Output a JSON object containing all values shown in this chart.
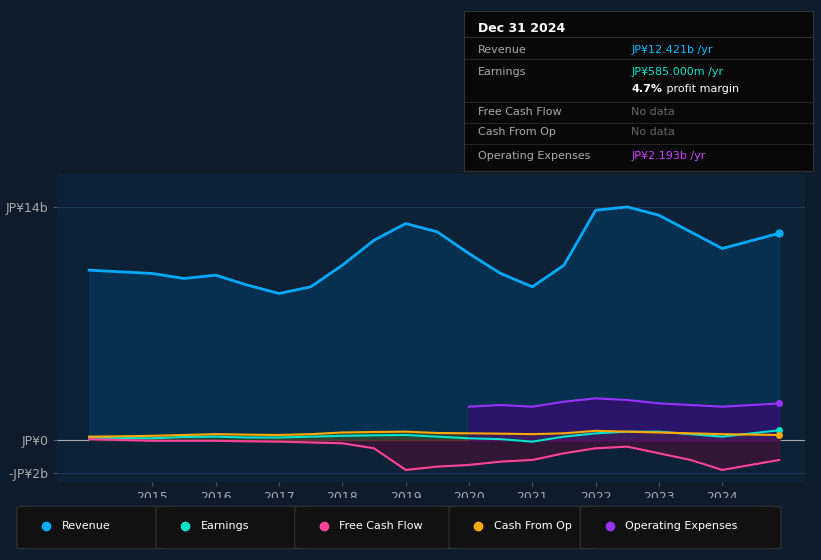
{
  "bg_color": "#0d1b2a",
  "plot_bg_color": "#0d2137",
  "grid_color": "#1e3a5a",
  "ylim": [
    -2.5,
    16.0
  ],
  "ytick_labels": [
    "-JP¥2b",
    "JP¥0",
    "JP¥14b"
  ],
  "ytick_vals": [
    -2,
    0,
    14
  ],
  "x_years": [
    2014,
    2014.5,
    2015,
    2015.5,
    2016,
    2016.5,
    2017,
    2017.5,
    2018,
    2018.5,
    2019,
    2019.5,
    2020,
    2020.5,
    2021,
    2021.5,
    2022,
    2022.5,
    2023,
    2023.5,
    2024,
    2024.9
  ],
  "revenue": [
    10.2,
    10.1,
    10.0,
    9.7,
    9.9,
    9.3,
    8.8,
    9.2,
    10.5,
    12.0,
    13.0,
    12.5,
    11.2,
    10.0,
    9.2,
    10.5,
    13.8,
    14.0,
    13.5,
    12.5,
    11.5,
    12.421
  ],
  "earnings": [
    0.15,
    0.12,
    0.1,
    0.18,
    0.2,
    0.15,
    0.15,
    0.2,
    0.25,
    0.28,
    0.3,
    0.2,
    0.1,
    0.05,
    -0.1,
    0.2,
    0.4,
    0.5,
    0.5,
    0.35,
    0.2,
    0.585
  ],
  "free_cash_flow_x": [
    2014,
    2014.5,
    2015,
    2015.5,
    2016,
    2016.5,
    2017,
    2017.5,
    2018,
    2018.5,
    2019,
    2019.5,
    2020,
    2020.5,
    2021,
    2021.5,
    2022,
    2022.5,
    2023,
    2023.5,
    2024,
    2024.9
  ],
  "free_cash_flow": [
    0.05,
    0.0,
    -0.05,
    -0.05,
    -0.05,
    -0.08,
    -0.1,
    -0.15,
    -0.2,
    -0.5,
    -1.8,
    -1.6,
    -1.5,
    -1.3,
    -1.2,
    -0.8,
    -0.5,
    -0.4,
    -0.8,
    -1.2,
    -1.8,
    -1.2
  ],
  "cash_from_op": [
    0.2,
    0.22,
    0.25,
    0.3,
    0.35,
    0.32,
    0.3,
    0.35,
    0.45,
    0.48,
    0.5,
    0.42,
    0.4,
    0.38,
    0.35,
    0.4,
    0.55,
    0.5,
    0.45,
    0.4,
    0.35,
    0.3
  ],
  "op_expenses_x": [
    2020,
    2020.5,
    2021,
    2021.5,
    2022,
    2022.5,
    2023,
    2023.5,
    2024,
    2024.9
  ],
  "op_expenses_y": [
    2.0,
    2.1,
    2.0,
    2.3,
    2.5,
    2.4,
    2.2,
    2.1,
    2.0,
    2.193
  ],
  "revenue_color": "#00aaff",
  "earnings_color": "#00e5cc",
  "fcf_color": "#ff4499",
  "cashop_color": "#ffaa00",
  "opex_color": "#9933ff",
  "legend_items": [
    {
      "label": "Revenue",
      "color": "#00aaff"
    },
    {
      "label": "Earnings",
      "color": "#00e5cc"
    },
    {
      "label": "Free Cash Flow",
      "color": "#ff4499"
    },
    {
      "label": "Cash From Op",
      "color": "#ffaa00"
    },
    {
      "label": "Operating Expenses",
      "color": "#9933ff"
    }
  ],
  "info_box": {
    "date": "Dec 31 2024",
    "rows": [
      {
        "label": "Revenue",
        "value": "JP¥12.421b /yr",
        "val_color": "#00bfff"
      },
      {
        "label": "Earnings",
        "value": "JP¥585.000m /yr",
        "val_color": "#00e5cc"
      },
      {
        "label": "",
        "value": "4.7% profit margin",
        "val_color": "#cccccc",
        "bold_prefix": "4.7%"
      },
      {
        "label": "Free Cash Flow",
        "value": "No data",
        "val_color": "#666666"
      },
      {
        "label": "Cash From Op",
        "value": "No data",
        "val_color": "#666666"
      },
      {
        "label": "Operating Expenses",
        "value": "JP¥2.193b /yr",
        "val_color": "#cc44ff"
      }
    ]
  }
}
